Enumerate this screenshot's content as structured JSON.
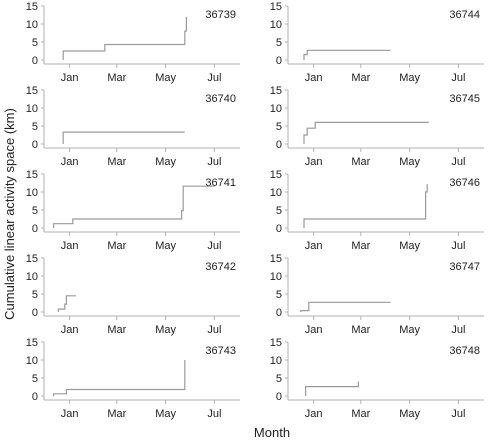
{
  "chart_data": {
    "type": "line",
    "title": "",
    "xlabel": "Month",
    "ylabel": "Cumulative linear activity space (km)",
    "x_unit": "day-of-season",
    "x_ticks": [
      {
        "label": "Jan",
        "value": 32
      },
      {
        "label": "Mar",
        "value": 91
      },
      {
        "label": "May",
        "value": 152
      },
      {
        "label": "Jul",
        "value": 213
      }
    ],
    "xlim": [
      0,
      245
    ],
    "ylim": [
      0,
      15
    ],
    "y_ticks": [
      0,
      5,
      10,
      15
    ],
    "grid": false,
    "line_color": "#9a9a9a",
    "panels": [
      {
        "id": "36739",
        "points": [
          [
            24,
            0
          ],
          [
            24,
            2.5
          ],
          [
            76,
            2.5
          ],
          [
            76,
            4.3
          ],
          [
            176,
            4.3
          ],
          [
            176,
            8
          ],
          [
            178,
            8
          ],
          [
            178,
            12
          ]
        ]
      },
      {
        "id": "36740",
        "points": [
          [
            24,
            0
          ],
          [
            24,
            3.3
          ],
          [
            176,
            3.3
          ]
        ]
      },
      {
        "id": "36741",
        "points": [
          [
            12,
            0
          ],
          [
            12,
            1.2
          ],
          [
            36,
            1.2
          ],
          [
            36,
            2.5
          ],
          [
            172,
            2.5
          ],
          [
            172,
            4.8
          ],
          [
            174,
            4.8
          ],
          [
            174,
            11.6
          ],
          [
            213,
            11.6
          ]
        ]
      },
      {
        "id": "36742",
        "points": [
          [
            18,
            0
          ],
          [
            18,
            0.8
          ],
          [
            26,
            0.8
          ],
          [
            26,
            2.2
          ],
          [
            28,
            2.2
          ],
          [
            28,
            4.5
          ],
          [
            40,
            4.5
          ]
        ]
      },
      {
        "id": "36743",
        "points": [
          [
            12,
            0
          ],
          [
            12,
            0.6
          ],
          [
            28,
            0.6
          ],
          [
            28,
            1.8
          ],
          [
            176,
            1.8
          ],
          [
            176,
            10
          ]
        ]
      },
      {
        "id": "36744",
        "points": [
          [
            20,
            0
          ],
          [
            20,
            1.5
          ],
          [
            24,
            1.5
          ],
          [
            24,
            2.7
          ],
          [
            128,
            2.7
          ]
        ]
      },
      {
        "id": "36745",
        "points": [
          [
            20,
            0
          ],
          [
            20,
            2.5
          ],
          [
            24,
            2.5
          ],
          [
            24,
            4.4
          ],
          [
            34,
            4.4
          ],
          [
            34,
            6
          ],
          [
            176,
            6
          ]
        ]
      },
      {
        "id": "36746",
        "points": [
          [
            20,
            0
          ],
          [
            20,
            2.5
          ],
          [
            172,
            2.5
          ],
          [
            172,
            10
          ],
          [
            174,
            10
          ],
          [
            174,
            12.2
          ]
        ]
      },
      {
        "id": "36747",
        "points": [
          [
            16,
            0
          ],
          [
            16,
            0.4
          ],
          [
            26,
            0.4
          ],
          [
            26,
            2.7
          ],
          [
            128,
            2.7
          ]
        ]
      },
      {
        "id": "36748",
        "points": [
          [
            22,
            0
          ],
          [
            22,
            2.6
          ],
          [
            88,
            2.6
          ],
          [
            88,
            4
          ]
        ]
      }
    ]
  }
}
